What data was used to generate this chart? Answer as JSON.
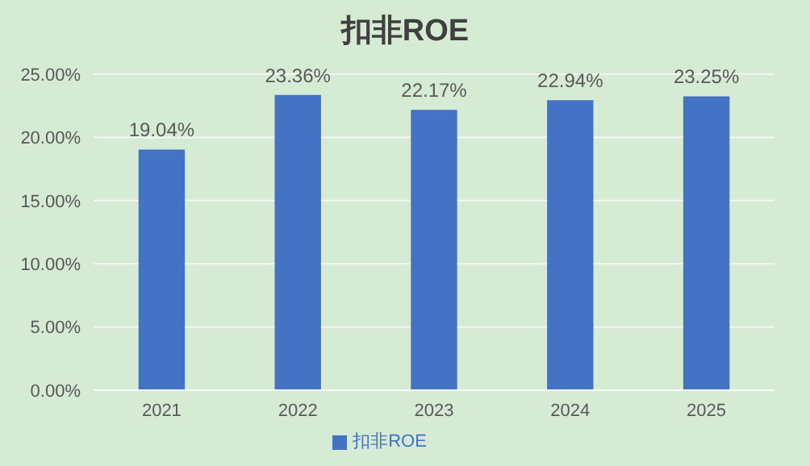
{
  "chart_data": {
    "type": "bar",
    "title": "扣非ROE",
    "categories": [
      "2021",
      "2022",
      "2023",
      "2024",
      "2025"
    ],
    "series": [
      {
        "name": "扣非ROE",
        "color": "#4472c4",
        "values": [
          19.04,
          23.36,
          22.17,
          22.94,
          23.25
        ],
        "value_labels": [
          "19.04%",
          "23.36%",
          "22.17%",
          "22.94%",
          "23.25%"
        ]
      }
    ],
    "ylim": [
      0,
      25
    ],
    "yticks": [
      {
        "value": 0,
        "label": "0.00%"
      },
      {
        "value": 5,
        "label": "5.00%"
      },
      {
        "value": 10,
        "label": "10.00%"
      },
      {
        "value": 15,
        "label": "15.00%"
      },
      {
        "value": 20,
        "label": "20.00%"
      },
      {
        "value": 25,
        "label": "25.00%"
      }
    ],
    "grid": "y",
    "legend": "bottom"
  }
}
